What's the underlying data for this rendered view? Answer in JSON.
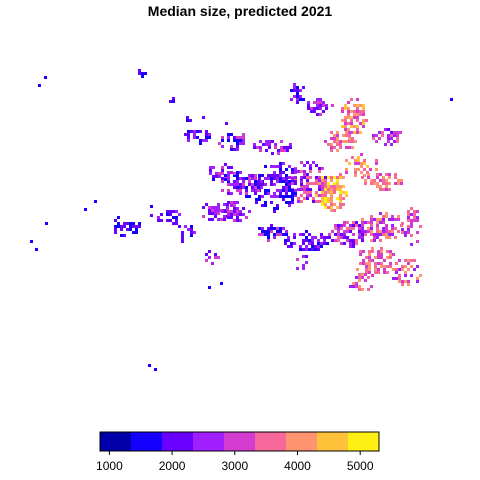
{
  "title": "Median size, predicted 2021",
  "legend": {
    "ticks": [
      1000,
      2000,
      3000,
      4000,
      5000
    ],
    "range": [
      850,
      5300
    ],
    "colors": [
      "#0000AA",
      "#1400FF",
      "#6A00FF",
      "#A01FFF",
      "#D23CCF",
      "#F6679A",
      "#FF9570",
      "#FFC23A",
      "#FFF014"
    ],
    "breaks": [
      850,
      1344,
      1839,
      2333,
      2828,
      3322,
      3817,
      4311,
      4806,
      5300
    ]
  }
}
